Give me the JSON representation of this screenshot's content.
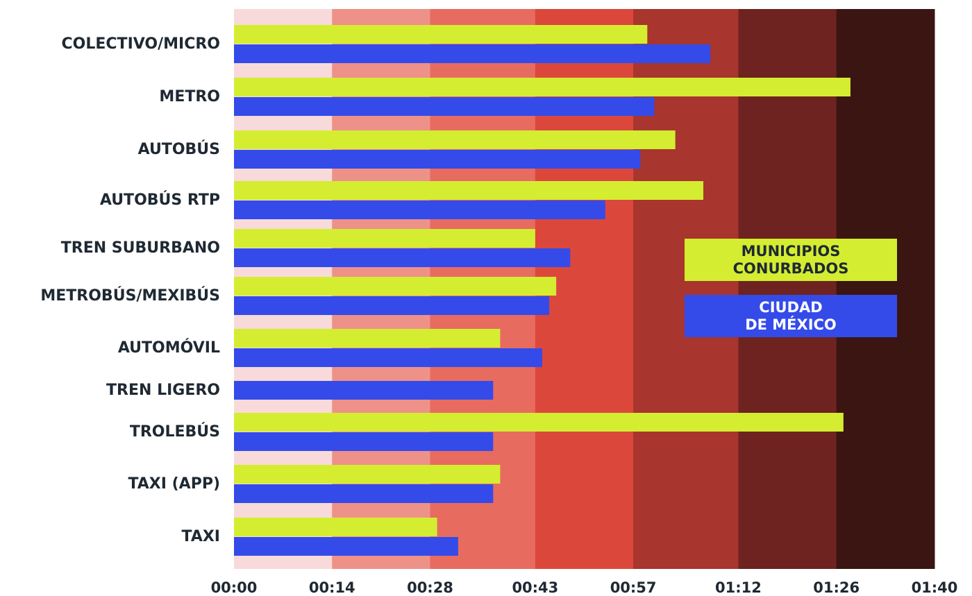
{
  "chart_data": {
    "type": "bar",
    "orientation": "horizontal",
    "x_unit": "mm:ss",
    "xlim": [
      "00:00",
      "01:40"
    ],
    "x_ticks": [
      "00:00",
      "00:14",
      "00:28",
      "00:43",
      "00:57",
      "01:12",
      "01:26",
      "01:40"
    ],
    "band_colors": [
      "#f8dada",
      "#ee9189",
      "#e86b60",
      "#dc473c",
      "#a8352e",
      "#6e2320",
      "#3a1512"
    ],
    "categories": [
      "COLECTIVO/MICRO",
      "METRO",
      "AUTOBÚS",
      "AUTOBÚS RTP",
      "TREN SUBURBANO",
      "METROBÚS/MEXIBÚS",
      "AUTOMÓVIL",
      "TREN LIGERO",
      "TROLEBÚS",
      "TAXI (APP)",
      "TAXI"
    ],
    "series": [
      {
        "name": "MUNICIPIOS\nCONURBADOS",
        "color": "#d4ed31",
        "text_color": "#1f2933",
        "values": [
          "00:59",
          "01:28",
          "01:03",
          "01:07",
          "00:43",
          "00:46",
          "00:38",
          null,
          "01:27",
          "00:38",
          "00:29"
        ]
      },
      {
        "name": "CIUDAD\nDE MÉXICO",
        "color": "#344be9",
        "text_color": "#ffffff",
        "values": [
          "01:08",
          "01:00",
          "00:58",
          "00:53",
          "00:48",
          "00:45",
          "00:44",
          "00:37",
          "00:37",
          "00:37",
          "00:32"
        ]
      }
    ]
  }
}
